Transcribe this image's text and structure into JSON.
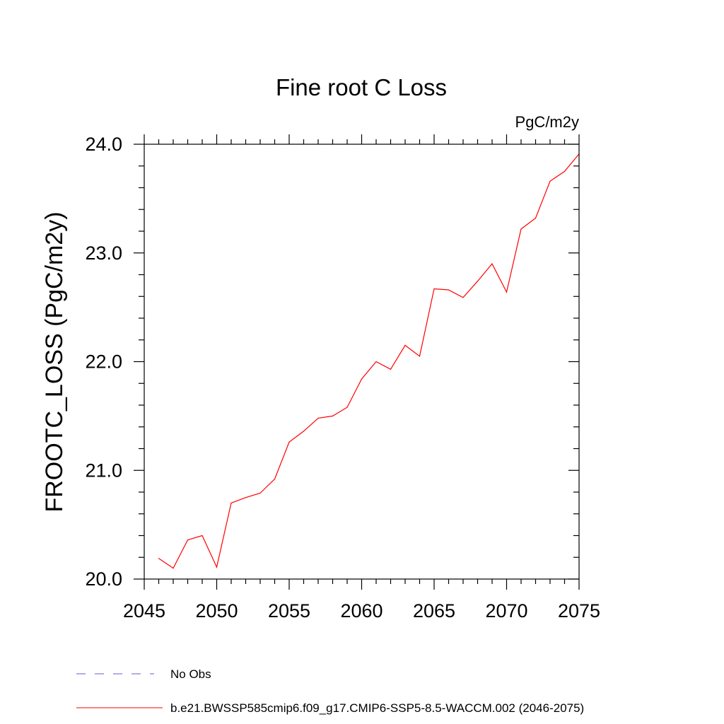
{
  "chart_data": {
    "type": "line",
    "title": "Fine root C Loss",
    "units_label": "PgC/m2y",
    "ylabel": "FROOTC_LOSS  (PgC/m2y)",
    "xlabel": "",
    "xlim": [
      2045,
      2075
    ],
    "ylim": [
      20.0,
      24.0
    ],
    "x_ticks": [
      "2045",
      "2050",
      "2055",
      "2060",
      "2065",
      "2070",
      "2075"
    ],
    "y_ticks": [
      "20.0",
      "21.0",
      "22.0",
      "23.0",
      "24.0"
    ],
    "grid": false,
    "series": [
      {
        "name": "b.e21.BWSSP585cmip6.f09_g17.CMIP6-SSP5-8.5-WACCM.002 (2046-2075)",
        "color": "#ff0000",
        "x": [
          2046,
          2047,
          2048,
          2049,
          2050,
          2051,
          2052,
          2053,
          2054,
          2055,
          2056,
          2057,
          2058,
          2059,
          2060,
          2061,
          2062,
          2063,
          2064,
          2065,
          2066,
          2067,
          2068,
          2069,
          2070,
          2071,
          2072,
          2073,
          2074,
          2075
        ],
        "y": [
          20.19,
          20.1,
          20.36,
          20.4,
          20.11,
          20.7,
          20.75,
          20.79,
          20.92,
          21.26,
          21.36,
          21.48,
          21.5,
          21.58,
          21.84,
          22.0,
          21.93,
          22.15,
          22.05,
          22.67,
          22.66,
          22.59,
          22.74,
          22.9,
          22.64,
          23.22,
          23.32,
          23.66,
          23.75,
          23.91
        ]
      }
    ],
    "legend": {
      "placement": "bottom",
      "entries": [
        {
          "label": "No Obs",
          "color": "#6a5acd",
          "style": "dashed"
        },
        {
          "label": "b.e21.BWSSP585cmip6.f09_g17.CMIP6-SSP5-8.5-WACCM.002 (2046-2075)",
          "color": "#ff0000",
          "style": "solid"
        }
      ]
    }
  }
}
